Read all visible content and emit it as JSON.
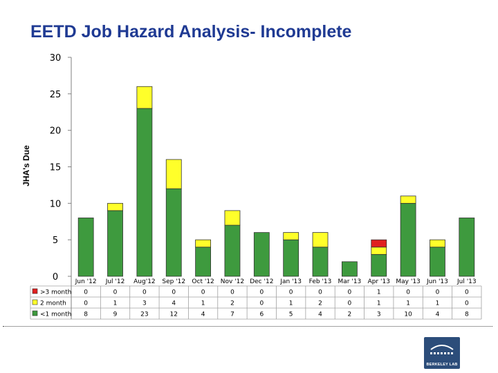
{
  "slide": {
    "title": "EETD Job Hazard Analysis- Incomplete"
  },
  "logo": {
    "text": "BERKELEY LAB"
  },
  "chart_data": {
    "type": "bar",
    "stacked": true,
    "ylabel": "JHA's Due",
    "ylim": [
      0,
      30
    ],
    "yticks": [
      0,
      5,
      10,
      15,
      20,
      25,
      30
    ],
    "grid": false,
    "legend": "data-table-left",
    "categories": [
      "Jun '12",
      "Jul '12",
      "Aug'12",
      "Sep '12",
      "Oct '12",
      "Nov '12",
      "Dec '12",
      "Jan '13",
      "Feb '13",
      "Mar '13",
      "Apr '13",
      "May '13",
      "Jun '13",
      "Jul '13"
    ],
    "series": [
      {
        "name": "<1 month",
        "color": "#3e9a3e",
        "values": [
          8,
          9,
          23,
          12,
          4,
          7,
          6,
          5,
          4,
          2,
          3,
          10,
          4,
          8
        ]
      },
      {
        "name": "2 month",
        "color": "#ffff2a",
        "values": [
          0,
          1,
          3,
          4,
          1,
          2,
          0,
          1,
          2,
          0,
          1,
          1,
          1,
          0
        ]
      },
      {
        "name": ">3 month",
        "color": "#e02020",
        "values": [
          0,
          0,
          0,
          0,
          0,
          0,
          0,
          0,
          0,
          0,
          1,
          0,
          0,
          0
        ]
      }
    ],
    "table_rows": [
      ">3 month",
      "2 month",
      "<1 month"
    ]
  }
}
